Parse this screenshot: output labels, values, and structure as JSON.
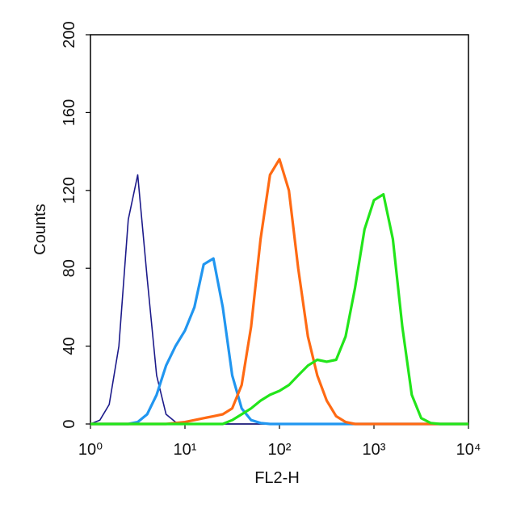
{
  "chart_data": {
    "type": "line",
    "xscale": "log",
    "xlabel": "FL2-H",
    "ylabel": "Counts",
    "x": [
      1,
      1.26,
      1.58,
      2,
      2.51,
      3.16,
      3.98,
      5.01,
      6.31,
      7.94,
      10,
      12.6,
      15.8,
      20,
      25.1,
      31.6,
      39.8,
      50.1,
      63.1,
      79.4,
      100,
      126,
      158,
      200,
      251,
      316,
      398,
      501,
      631,
      794,
      1000,
      1259,
      1585,
      1995,
      2512,
      3162,
      3981,
      5012,
      6310,
      7943,
      10000
    ],
    "series": [
      {
        "color": "#1c1a8a",
        "values": [
          0,
          2,
          10,
          40,
          105,
          128,
          75,
          25,
          5,
          1,
          0,
          0,
          0,
          0,
          0,
          0,
          0,
          0,
          0,
          0,
          0,
          0,
          0,
          0,
          0,
          0,
          0,
          0,
          0,
          0,
          0,
          0,
          0,
          0,
          0,
          0,
          0,
          0,
          0,
          0,
          0
        ]
      },
      {
        "color": "#2196f0",
        "values": [
          0,
          0,
          0,
          0,
          0,
          1,
          5,
          15,
          30,
          40,
          48,
          60,
          82,
          85,
          60,
          25,
          8,
          2,
          0.5,
          0,
          0,
          0,
          0,
          0,
          0,
          0,
          0,
          0,
          0,
          0,
          0,
          0,
          0,
          0,
          0,
          0,
          0,
          0,
          0,
          0,
          0
        ]
      },
      {
        "color": "#ff6a13",
        "values": [
          0,
          0,
          0,
          0,
          0,
          0,
          0,
          0,
          0,
          0.5,
          1,
          2,
          3,
          4,
          5,
          8,
          20,
          50,
          95,
          128,
          136,
          120,
          80,
          45,
          25,
          12,
          4,
          1,
          0,
          0,
          0,
          0,
          0,
          0,
          0,
          0,
          0,
          0,
          0,
          0,
          0
        ]
      },
      {
        "color": "#22e51a",
        "values": [
          0,
          0,
          0,
          0,
          0,
          0,
          0,
          0,
          0,
          0,
          0,
          0,
          0,
          0,
          0,
          2,
          5,
          8,
          12,
          15,
          17,
          20,
          25,
          30,
          33,
          32,
          33,
          45,
          70,
          100,
          115,
          118,
          95,
          50,
          15,
          3,
          0.5,
          0,
          0,
          0,
          0
        ]
      }
    ],
    "xlim": [
      1,
      10000
    ],
    "xticks": [
      {
        "value": 1,
        "label": "10⁰"
      },
      {
        "value": 10,
        "label": "10¹"
      },
      {
        "value": 100,
        "label": "10²"
      },
      {
        "value": 1000,
        "label": "10³"
      },
      {
        "value": 10000,
        "label": "10⁴"
      }
    ],
    "ylim": [
      0,
      200
    ],
    "yticks": [
      0,
      40,
      80,
      120,
      160,
      200
    ]
  }
}
